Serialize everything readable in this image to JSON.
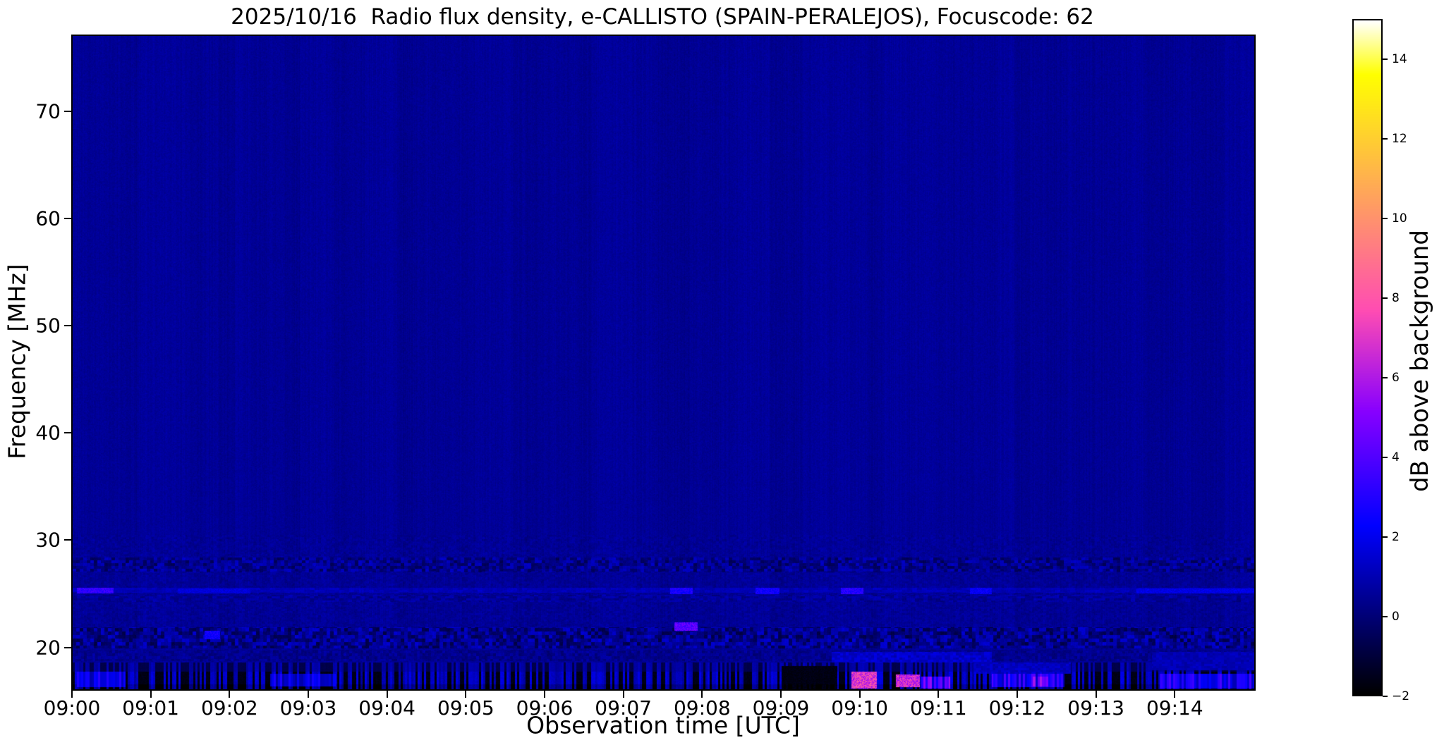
{
  "chart_data": {
    "type": "heatmap",
    "title": "2025/10/16  Radio flux density, e-CALLISTO (SPAIN-PERALEJOS), Focuscode: 62",
    "date": "2025/10/16",
    "station": "SPAIN-PERALEJOS",
    "focuscode": "62",
    "xlabel": "Observation time [UTC]",
    "ylabel": "Frequency [MHz]",
    "colorbar_label": "dB above background",
    "colormap": "gnuplot2",
    "vmin_db": -2,
    "vmax_db": 15,
    "time_start_utc": "09:00",
    "time_span_seconds": 900,
    "x_tick_interval_seconds": 60,
    "x_ticks": [
      "09:00",
      "09:01",
      "09:02",
      "09:03",
      "09:04",
      "09:05",
      "09:06",
      "09:07",
      "09:08",
      "09:09",
      "09:10",
      "09:11",
      "09:12",
      "09:13",
      "09:14"
    ],
    "freq_top_mhz": 77.0,
    "freq_bottom_mhz": 16.1,
    "y_ticks_mhz": [
      70,
      60,
      50,
      40,
      30,
      20
    ],
    "colorbar_ticks_db": [
      14,
      12,
      10,
      8,
      6,
      4,
      2,
      0,
      -2
    ],
    "background_level_db": 0.5,
    "noise_seed": 7,
    "bands": [
      {
        "name": "rfi-speckle-27-28",
        "f": [
          27.05,
          28.4
        ],
        "mean_db": 0.25,
        "amp_db": 1.9,
        "cell": [
          5,
          4
        ]
      },
      {
        "name": "speckle-24.5",
        "f": [
          24.3,
          24.95
        ],
        "mean_db": 0.5,
        "amp_db": 1.0,
        "cell": [
          6,
          3
        ]
      },
      {
        "name": "iono-line-25.3",
        "f": [
          25.15,
          25.6
        ],
        "mean_db": 1.0,
        "amp_db": 0.6,
        "cell": [
          7,
          3
        ]
      },
      {
        "name": "rfi-speckle-20-22",
        "f": [
          19.95,
          21.9
        ],
        "mean_db": 0.2,
        "amp_db": 2.4,
        "cell": [
          5,
          5
        ]
      },
      {
        "name": "band-19",
        "f": [
          18.75,
          19.8
        ],
        "mean_db": 0.3,
        "amp_db": 0.9,
        "cell": [
          4,
          4
        ]
      },
      {
        "name": "bottom-comb",
        "f": [
          16.1,
          18.65
        ],
        "mean_db": -0.2,
        "amp_db": 2.2,
        "cell": [
          3,
          6
        ],
        "comb": true
      }
    ],
    "features": [
      {
        "kind": "burst",
        "t": [
          3,
          31
        ],
        "f": [
          25.05,
          25.6
        ],
        "level_db": 3.4
      },
      {
        "kind": "burst",
        "t": [
          80,
          135
        ],
        "f": [
          25.05,
          25.55
        ],
        "level_db": 1.7
      },
      {
        "kind": "burst",
        "t": [
          455,
          472
        ],
        "f": [
          25.0,
          25.6
        ],
        "level_db": 2.8
      },
      {
        "kind": "burst",
        "t": [
          520,
          538
        ],
        "f": [
          25.0,
          25.6
        ],
        "level_db": 2.6
      },
      {
        "kind": "burst",
        "t": [
          585,
          602
        ],
        "f": [
          25.0,
          25.6
        ],
        "level_db": 3.1
      },
      {
        "kind": "burst",
        "t": [
          683,
          700
        ],
        "f": [
          25.0,
          25.6
        ],
        "level_db": 2.3
      },
      {
        "kind": "line",
        "t": [
          810,
          900
        ],
        "f": [
          25.1,
          25.5
        ],
        "level_db": 1.9
      },
      {
        "kind": "blob",
        "t": [
          458,
          476
        ],
        "f": [
          21.6,
          22.35
        ],
        "level_db": 4.2
      },
      {
        "kind": "blob",
        "t": [
          100,
          112
        ],
        "f": [
          20.8,
          21.6
        ],
        "level_db": 2.6
      },
      {
        "kind": "dark",
        "t": [
          540,
          582
        ],
        "f": [
          16.1,
          18.3
        ],
        "level_db": -1.9
      },
      {
        "kind": "patch",
        "t": [
          593,
          612
        ],
        "f": [
          16.2,
          17.8
        ],
        "level_db": 7.2
      },
      {
        "kind": "patch",
        "t": [
          627,
          645
        ],
        "f": [
          16.3,
          17.5
        ],
        "level_db": 6.8
      },
      {
        "kind": "patch",
        "t": [
          646,
          668
        ],
        "f": [
          16.2,
          17.3
        ],
        "level_db": 4.4
      },
      {
        "kind": "patch",
        "t": [
          700,
          755
        ],
        "f": [
          16.3,
          17.6
        ],
        "level_db": 3.2
      },
      {
        "kind": "patch",
        "t": [
          731,
          743
        ],
        "f": [
          16.4,
          17.3
        ],
        "level_db": 4.6
      },
      {
        "kind": "band2",
        "t": [
          578,
          700
        ],
        "f": [
          18.6,
          19.6
        ],
        "level_db": 1.5
      },
      {
        "kind": "band2",
        "t": [
          686,
          760
        ],
        "f": [
          17.6,
          18.6
        ],
        "level_db": 1.3
      },
      {
        "kind": "band2",
        "t": [
          822,
          900
        ],
        "f": [
          17.9,
          19.6
        ],
        "level_db": 1.1
      },
      {
        "kind": "patch",
        "t": [
          828,
          900
        ],
        "f": [
          16.2,
          17.6
        ],
        "level_db": 3.0
      },
      {
        "kind": "patch",
        "t": [
          3,
          40
        ],
        "f": [
          16.3,
          17.8
        ],
        "level_db": 2.6
      },
      {
        "kind": "patch",
        "t": [
          150,
          200
        ],
        "f": [
          16.4,
          17.6
        ],
        "level_db": 2.2
      }
    ]
  }
}
